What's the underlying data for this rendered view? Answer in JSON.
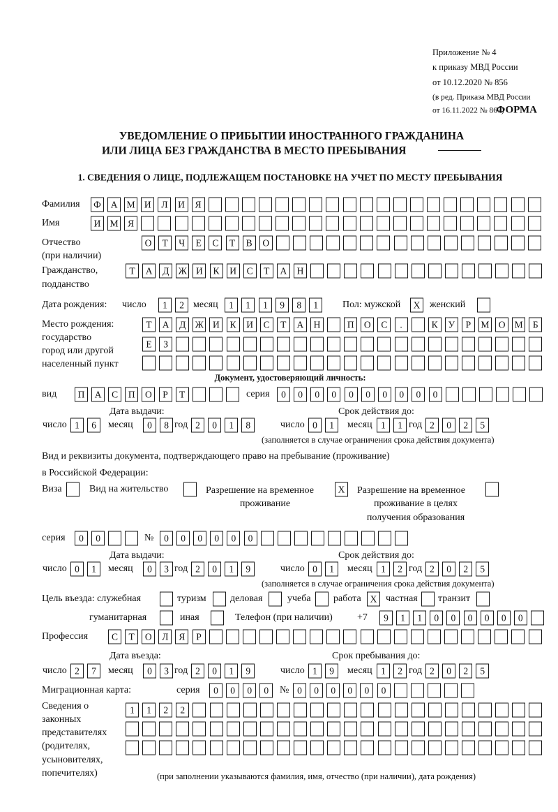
{
  "header": {
    "appendix": "Приложение № 4",
    "order": "к приказу МВД России",
    "order_date": "от 10.12.2020 № 856",
    "edition_1": "(в ред. Приказа МВД России",
    "edition_2": "от 16.11.2022 № 867)",
    "form_label": "ФОРМА",
    "title_1": "УВЕДОМЛЕНИЕ О ПРИБЫТИИ ИНОСТРАННОГО ГРАЖДАНИНА",
    "title_2": "ИЛИ ЛИЦА БЕЗ ГРАЖДАНСТВА В МЕСТО ПРЕБЫВАНИЯ",
    "section_1": "1. СВЕДЕНИЯ О ЛИЦЕ, ПОДЛЕЖАЩЕМ ПОСТАНОВКЕ НА УЧЕТ ПО МЕСТУ ПРЕБЫВАНИЯ"
  },
  "labels": {
    "surname": "Фамилия",
    "name": "Имя",
    "patronymic": "Отчество",
    "patronymic_note": "(при наличии)",
    "citizenship_1": "Гражданство,",
    "citizenship_2": "подданство",
    "birth_date": "Дата рождения:",
    "day": "число",
    "month": "месяц",
    "year": "год",
    "sex_male": "Пол: мужской",
    "sex_female": "женский",
    "birthplace_1": "Место рождения:",
    "birthplace_2": "государство",
    "birthplace_3": "город или другой",
    "birthplace_4": "населенный пункт",
    "id_doc": "Документ, удостоверяющий личность:",
    "kind": "вид",
    "series": "серия",
    "number": "№",
    "issue_date": "Дата выдачи:",
    "valid_until": "Срок действия до:",
    "validity_note": "(заполняется в случае ограничения срока действия документа)",
    "stay_doc_1": "Вид и реквизиты документа, подтверждающего право на пребывание (проживание)",
    "stay_doc_2": "в Российской Федерации:",
    "visa": "Виза",
    "residence_permit": "Вид на жительство",
    "temp_permit_1": "Разрешение на временное",
    "temp_permit_2": "проживание",
    "temp_edu_1": "Разрешение на временное",
    "temp_edu_2": "проживание в целях",
    "temp_edu_3": "получения образования",
    "purpose": "Цель въезда: служебная",
    "tourism": "туризм",
    "business": "деловая",
    "study": "учеба",
    "work": "работа",
    "private": "частная",
    "transit": "транзит",
    "humanitarian": "гуманитарная",
    "other": "иная",
    "phone": "Телефон (при наличии)",
    "phone_prefix": "+7",
    "profession": "Профессия",
    "entry_date": "Дата въезда:",
    "stay_until": "Срок пребывания до:",
    "migration_card": "Миграционная карта:",
    "reps_1": "Сведения о",
    "reps_2": "законных",
    "reps_3": "представителях",
    "reps_4": "(родителях,",
    "reps_5": "усыновителях,",
    "reps_6": "попечителях)",
    "reps_note": "(при заполнении указываются фамилия, имя, отчество (при наличии), дата рождения)"
  },
  "values": {
    "surname": "ФАМИЛИЯ",
    "name": "ИМЯ",
    "patronymic": "ОТЧЕСТВО",
    "citizenship": "ТАДЖИКИСТАН",
    "birth_day": "12",
    "birth_month": "11",
    "birth_year": "1981",
    "sex_male": "X",
    "sex_female": "",
    "birthplace_1": "ТАДЖИКИСТАН ПОС. КУРМОМБ",
    "birthplace_2": "ЕЗ",
    "birthplace_3": "",
    "id_kind": "ПАСПОРТ",
    "id_series": "0000",
    "id_number": "000000",
    "id_issue_day": "16",
    "id_issue_month": "08",
    "id_issue_year": "2018",
    "id_valid_day": "01",
    "id_valid_month": "11",
    "id_valid_year": "2025",
    "visa": "",
    "residence_permit": "",
    "temp_permit": "X",
    "temp_edu": "",
    "stay_series": "00",
    "stay_number": "000000",
    "stay_issue_day": "01",
    "stay_issue_month": "03",
    "stay_issue_year": "2019",
    "stay_valid_day": "01",
    "stay_valid_month": "12",
    "stay_valid_year": "2025",
    "purpose": {
      "service": "",
      "tourism": "",
      "business": "",
      "study": "",
      "work": "X",
      "private": "",
      "transit": "",
      "humanitarian": "",
      "other": ""
    },
    "phone": "911000000",
    "profession": "СТОЛЯР",
    "entry_day": "27",
    "entry_month": "03",
    "entry_year": "2019",
    "stay_until_day": "19",
    "stay_until_month": "12",
    "stay_until_year": "2025",
    "mig_series": "0000",
    "mig_number": "000000",
    "reps_1": "1122",
    "reps_2": "",
    "reps_3": ""
  }
}
